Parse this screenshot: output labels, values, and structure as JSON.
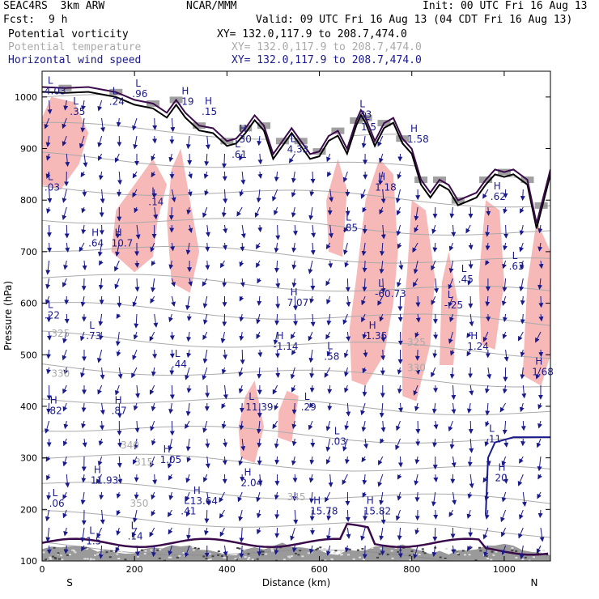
{
  "header": {
    "model": "SEAC4RS  3km ARW",
    "org": "NCAR/MMM",
    "init": "Init: 00 UTC Fri 16 Aug 13",
    "fcst_label": "Fcst:",
    "fcst_value": "9 h",
    "valid": "Valid: 09 UTC Fri 16 Aug 13 (04 CDT Fri 16 Aug 13)"
  },
  "fields": [
    {
      "name": "Potential vorticity",
      "xy": "XY= 132.0,117.9 to 208.7,474.0",
      "color": "#000000"
    },
    {
      "name": "Potential temperature",
      "xy": "XY= 132.0,117.9 to 208.7,474.0",
      "color": "#aaaaaa"
    },
    {
      "name": "Horizontal wind speed",
      "xy": "XY= 132.0,117.9 to 208.7,474.0",
      "color": "#1a1a8c"
    }
  ],
  "chart_data": {
    "type": "cross-section",
    "xlabel": "Distance (km)",
    "ylabel": "Pressure (hPa)",
    "xlim": [
      0,
      1100
    ],
    "ylim": [
      1050,
      100
    ],
    "x_ticks": [
      "0",
      "200",
      "400",
      "600",
      "800",
      "1000"
    ],
    "y_ticks": [
      "100",
      "200",
      "300",
      "400",
      "500",
      "600",
      "700",
      "800",
      "900",
      "1000"
    ],
    "x_end_labels": {
      "left": "S",
      "right": "N"
    },
    "colors": {
      "pv_shading": "#f7b8b8",
      "terrain": "#000000",
      "pv_contour": "#3a0a4a",
      "theta": "#aaaaaa",
      "wind": "#1a1a8c"
    },
    "theta_contour_labels": [
      {
        "text": "345",
        "x": 530,
        "p": 218
      },
      {
        "text": "340",
        "x": 170,
        "p": 318
      },
      {
        "text": "330",
        "x": 20,
        "p": 457
      },
      {
        "text": "330",
        "x": 790,
        "p": 468
      },
      {
        "text": "325",
        "x": 20,
        "p": 535
      },
      {
        "text": "325",
        "x": 790,
        "p": 518
      },
      {
        "text": "315",
        "x": 200,
        "p": 285
      },
      {
        "text": "350",
        "x": 190,
        "p": 205
      }
    ],
    "extrema_labels": [
      {
        "type": "L",
        "value": "1.5",
        "x": 95,
        "p": 132
      },
      {
        "type": "L",
        "value": ".14",
        "x": 185,
        "p": 142
      },
      {
        "type": "L",
        "value": ".06",
        "x": 15,
        "p": 205
      },
      {
        "type": "H",
        "value": "11.93",
        "x": 105,
        "p": 250
      },
      {
        "type": "L",
        "value": ".41",
        "x": 300,
        "p": 190
      },
      {
        "type": "H",
        "value": "13.64",
        "x": 320,
        "p": 210
      },
      {
        "type": "H",
        "value": "2.04",
        "x": 430,
        "p": 245
      },
      {
        "type": "H",
        "value": "15.78",
        "x": 580,
        "p": 190
      },
      {
        "type": "H",
        "value": "15.82",
        "x": 695,
        "p": 190
      },
      {
        "type": "H",
        "value": "1.05",
        "x": 255,
        "p": 290
      },
      {
        "type": "L",
        "value": ".03",
        "x": 625,
        "p": 325
      },
      {
        "type": "H",
        "value": "20",
        "x": 980,
        "p": 255
      },
      {
        "type": "L",
        "value": ".11",
        "x": 960,
        "p": 330
      },
      {
        "type": "H",
        "value": ".82",
        "x": 10,
        "p": 385
      },
      {
        "type": "H",
        "value": ".87",
        "x": 150,
        "p": 385
      },
      {
        "type": "L",
        "value": "11.39",
        "x": 440,
        "p": 392
      },
      {
        "type": "L",
        "value": ".29",
        "x": 560,
        "p": 392
      },
      {
        "type": "H",
        "value": "1.68",
        "x": 1060,
        "p": 460
      },
      {
        "type": "L",
        "value": ".44",
        "x": 280,
        "p": 475
      },
      {
        "type": "H",
        "value": "-1.14",
        "x": 500,
        "p": 510
      },
      {
        "type": "L",
        "value": ".58",
        "x": 610,
        "p": 490
      },
      {
        "type": "H",
        "value": "1.24",
        "x": 920,
        "p": 510
      },
      {
        "type": "L",
        "value": ".73",
        "x": 95,
        "p": 530
      },
      {
        "type": "H",
        "value": "1.36",
        "x": 700,
        "p": 530
      },
      {
        "type": "L",
        "value": ".22",
        "x": 5,
        "p": 570
      },
      {
        "type": "H",
        "value": "7.07",
        "x": 530,
        "p": 595
      },
      {
        "type": "L",
        "value": "-.25",
        "x": 870,
        "p": 590
      },
      {
        "type": "L",
        "value": "-60.73",
        "x": 720,
        "p": 612
      },
      {
        "type": "L",
        "value": ".45",
        "x": 900,
        "p": 640
      },
      {
        "type": "L",
        "value": ".63",
        "x": 1010,
        "p": 665
      },
      {
        "type": "H",
        "value": ".64",
        "x": 100,
        "p": 710
      },
      {
        "type": "H",
        "value": "10.7",
        "x": 150,
        "p": 710
      },
      {
        "type": "L",
        "value": ".85",
        "x": 650,
        "p": 740
      },
      {
        "type": "L",
        "value": ".14",
        "x": 230,
        "p": 790
      },
      {
        "type": "H",
        "value": "1.18",
        "x": 720,
        "p": 818
      },
      {
        "type": "H",
        "value": ".62",
        "x": 970,
        "p": 800
      },
      {
        "type": "L",
        "value": ".03",
        "x": 5,
        "p": 818
      },
      {
        "type": "L",
        "value": ".61",
        "x": 410,
        "p": 882
      },
      {
        "type": "H",
        "value": ".30",
        "x": 420,
        "p": 912
      },
      {
        "type": "L",
        "value": "4.33",
        "x": 530,
        "p": 892
      },
      {
        "type": "L",
        "value": "1.5",
        "x": 690,
        "p": 935
      },
      {
        "type": "H",
        "value": "1.58",
        "x": 790,
        "p": 912
      },
      {
        "type": "L",
        "value": ".35",
        "x": 60,
        "p": 965
      },
      {
        "type": "L",
        "value": ".24",
        "x": 145,
        "p": 985
      },
      {
        "type": "L",
        "value": ".96",
        "x": 195,
        "p": 1000
      },
      {
        "type": "H",
        "value": ".19",
        "x": 295,
        "p": 985
      },
      {
        "type": "H",
        "value": ".15",
        "x": 345,
        "p": 965
      },
      {
        "type": "L",
        "value": ".33",
        "x": 680,
        "p": 960
      },
      {
        "type": "L",
        "value": "4.03",
        "x": 5,
        "p": 1005
      }
    ],
    "terrain_pressure": [
      [
        0,
        1010
      ],
      [
        50,
        1008
      ],
      [
        100,
        1010
      ],
      [
        160,
        1000
      ],
      [
        200,
        985
      ],
      [
        240,
        978
      ],
      [
        270,
        960
      ],
      [
        290,
        985
      ],
      [
        310,
        960
      ],
      [
        340,
        935
      ],
      [
        370,
        930
      ],
      [
        400,
        905
      ],
      [
        420,
        910
      ],
      [
        440,
        930
      ],
      [
        460,
        955
      ],
      [
        480,
        935
      ],
      [
        500,
        880
      ],
      [
        520,
        905
      ],
      [
        540,
        930
      ],
      [
        560,
        905
      ],
      [
        580,
        880
      ],
      [
        600,
        885
      ],
      [
        620,
        915
      ],
      [
        640,
        925
      ],
      [
        660,
        890
      ],
      [
        680,
        945
      ],
      [
        690,
        965
      ],
      [
        700,
        950
      ],
      [
        720,
        905
      ],
      [
        740,
        940
      ],
      [
        760,
        950
      ],
      [
        780,
        910
      ],
      [
        800,
        890
      ],
      [
        820,
        830
      ],
      [
        840,
        805
      ],
      [
        860,
        830
      ],
      [
        880,
        820
      ],
      [
        900,
        790
      ],
      [
        940,
        805
      ],
      [
        960,
        830
      ],
      [
        980,
        850
      ],
      [
        1000,
        845
      ],
      [
        1020,
        850
      ],
      [
        1050,
        830
      ],
      [
        1070,
        745
      ],
      [
        1080,
        780
      ],
      [
        1100,
        850
      ]
    ]
  }
}
